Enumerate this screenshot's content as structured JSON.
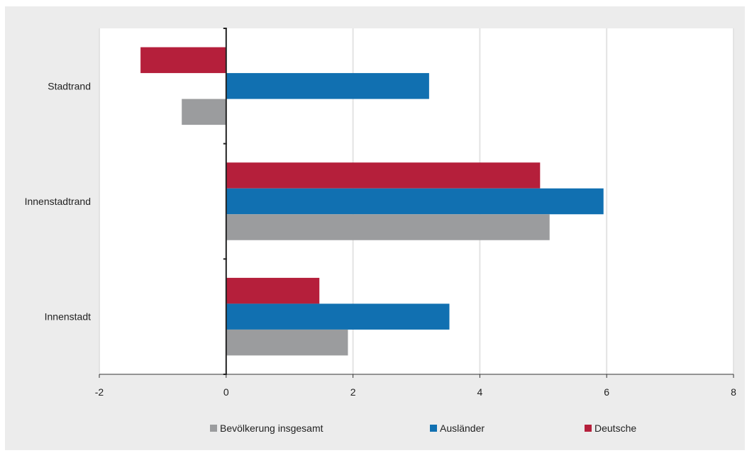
{
  "chart_data": {
    "type": "bar",
    "orientation": "horizontal",
    "categories": [
      "Stadtrand",
      "Innenstadtrand",
      "Innenstadt"
    ],
    "series": [
      {
        "name": "Deutsche",
        "color": "#b51f3b",
        "values": [
          -1.35,
          4.95,
          1.47
        ]
      },
      {
        "name": "Ausländer",
        "color": "#1170b1",
        "values": [
          3.2,
          5.95,
          3.52
        ]
      },
      {
        "name": "Bevölkerung insgesamt",
        "color": "#9b9c9e",
        "values": [
          -0.7,
          5.1,
          1.92
        ]
      }
    ],
    "xlim": [
      -2,
      8
    ],
    "xticks": [
      -2,
      0,
      2,
      4,
      6,
      8
    ],
    "xtick_labels": [
      "-2",
      "0",
      "2",
      "4",
      "6",
      "8"
    ],
    "grid": "vertical",
    "legend_position": "bottom",
    "legend": [
      "Bevölkerung insgesamt",
      "Ausländer",
      "Deutsche"
    ]
  }
}
